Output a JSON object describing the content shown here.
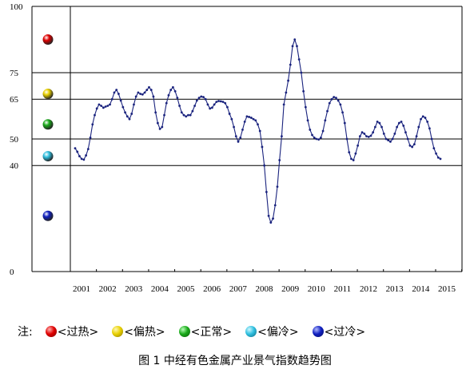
{
  "caption": "图 1    中经有色金属产业景气指数趋势图",
  "legend": {
    "note": "注:",
    "items": [
      {
        "label": "<过热>",
        "color": "#e00000"
      },
      {
        "label": "<偏热>",
        "color": "#e8d000"
      },
      {
        "label": "<正常>",
        "color": "#1aaa1a"
      },
      {
        "label": "<偏冷>",
        "color": "#30c0e0"
      },
      {
        "label": "<过冷>",
        "color": "#1020c0"
      }
    ]
  },
  "chart_data": {
    "type": "line",
    "title": "",
    "xlabel": "",
    "ylabel": "",
    "ylim": [
      0,
      100
    ],
    "yticks": [
      0,
      40,
      50,
      65,
      75,
      100
    ],
    "thresholds": [
      40,
      50,
      65,
      75
    ],
    "grid": false,
    "line_color": "#1a237e",
    "x_tick_labels": [
      "2001",
      "2002",
      "2003",
      "2004",
      "2005",
      "2006",
      "2007",
      "2008",
      "2009",
      "2010",
      "2011",
      "2012",
      "2013",
      "2014",
      "2015"
    ],
    "zone_markers": [
      {
        "zone": "过热",
        "y": 87.5,
        "color": "#e00000"
      },
      {
        "zone": "偏热",
        "y": 67,
        "color": "#e8d000"
      },
      {
        "zone": "正常",
        "y": 55.5,
        "color": "#1aaa1a"
      },
      {
        "zone": "偏冷",
        "y": 43.5,
        "color": "#30c0e0"
      },
      {
        "zone": "过冷",
        "y": 21,
        "color": "#1020c0"
      }
    ],
    "series": [
      {
        "start": "2001-01",
        "frequency": "monthly",
        "values": [
          46.5,
          45.2,
          43.5,
          42.5,
          42.2,
          43.8,
          46.2,
          50.5,
          55.5,
          59.0,
          61.5,
          63.0,
          62.5,
          61.8,
          62.2,
          62.5,
          63.0,
          65.0,
          67.5,
          68.5,
          67.0,
          64.5,
          62.0,
          60.0,
          58.5,
          57.5,
          59.5,
          63.0,
          66.0,
          67.5,
          67.0,
          66.8,
          67.5,
          68.5,
          69.5,
          68.5,
          66.0,
          60.0,
          56.0,
          53.8,
          54.5,
          59.0,
          63.5,
          66.5,
          68.5,
          69.5,
          68.0,
          65.5,
          62.5,
          60.0,
          59.0,
          58.5,
          59.0,
          59.0,
          60.5,
          62.5,
          64.5,
          65.5,
          66.0,
          65.8,
          65.0,
          63.0,
          61.5,
          61.8,
          63.0,
          64.0,
          64.3,
          64.2,
          64.0,
          63.5,
          62.0,
          59.5,
          57.5,
          54.5,
          51.0,
          49.0,
          50.5,
          53.5,
          56.5,
          58.5,
          58.3,
          58.0,
          57.5,
          57.0,
          55.5,
          53.0,
          47.0,
          40.0,
          30.0,
          21.0,
          18.5,
          20.0,
          25.0,
          32.0,
          42.0,
          51.0,
          63.0,
          67.5,
          72.0,
          78.0,
          85.0,
          87.5,
          85.0,
          80.0,
          75.0,
          68.0,
          62.0,
          57.0,
          53.5,
          51.5,
          50.5,
          50.0,
          49.8,
          50.5,
          53.0,
          57.0,
          60.5,
          63.5,
          65.0,
          65.8,
          65.5,
          64.5,
          63.0,
          60.0,
          56.0,
          50.0,
          45.0,
          42.5,
          42.0,
          44.5,
          47.5,
          51.0,
          52.5,
          52.0,
          51.0,
          50.8,
          51.2,
          52.5,
          54.5,
          56.5,
          56.0,
          54.5,
          52.0,
          50.0,
          49.5,
          49.0,
          50.0,
          52.0,
          54.5,
          56.0,
          56.5,
          55.0,
          52.5,
          50.0,
          47.5,
          47.0,
          48.0,
          51.0,
          54.5,
          57.5,
          58.5,
          58.0,
          56.5,
          54.0,
          50.0,
          46.5,
          44.5,
          43.0,
          42.5
        ]
      }
    ]
  }
}
